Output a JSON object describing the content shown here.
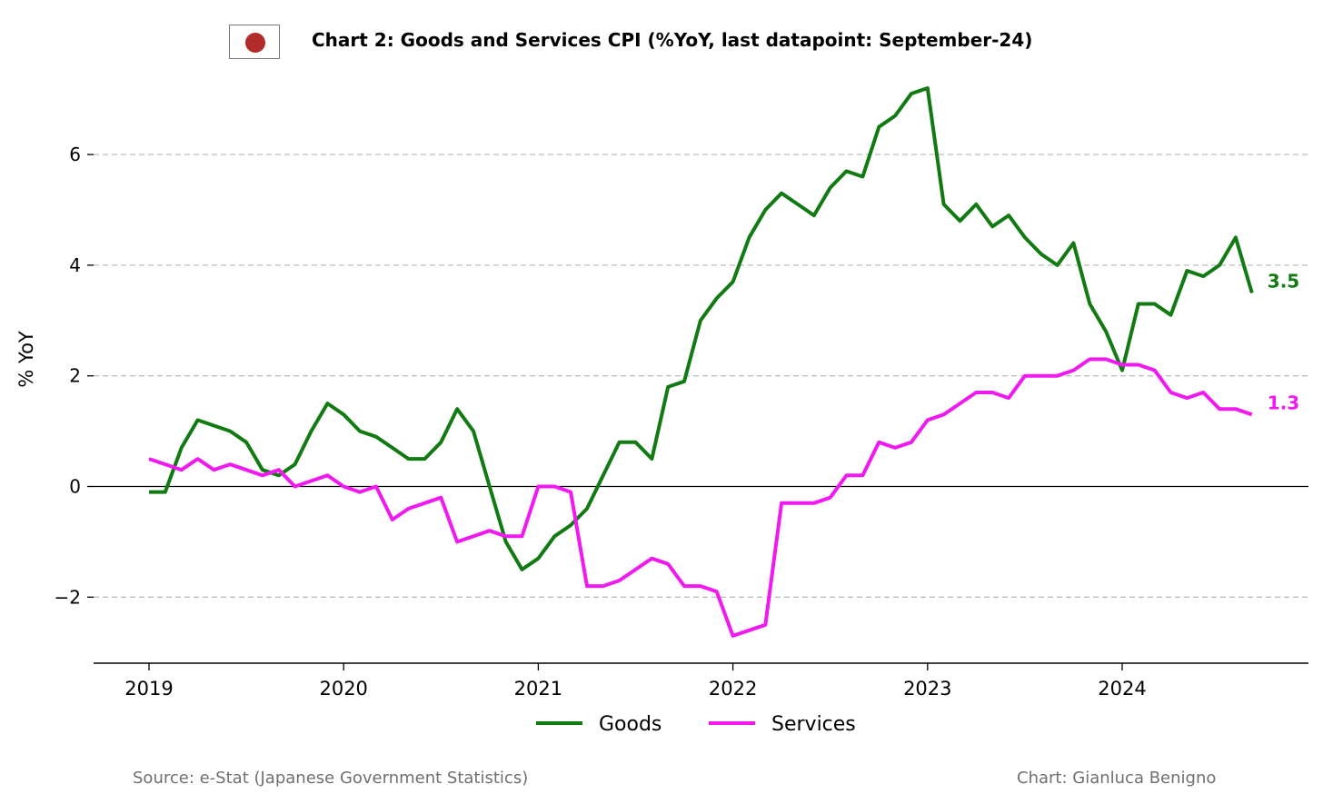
{
  "title": "Chart 2: Goods and Services CPI (%YoY, last datapoint: September-24)",
  "source": "Source: e-Stat (Japanese Government Statistics)",
  "credit": "Chart: Gianluca Benigno",
  "flag_icon": "japan-flag-icon",
  "chart_data": {
    "type": "line",
    "title": "Chart 2: Goods and Services CPI (%YoY, last datapoint: September-24)",
    "xlabel": "",
    "ylabel": "% YoY",
    "ylim": [
      -3.2,
      7.4
    ],
    "yticks": [
      -2,
      0,
      2,
      4,
      6
    ],
    "ytick_labels": [
      "−2",
      "0",
      "2",
      "4",
      "6"
    ],
    "xticks": [
      "2019",
      "2020",
      "2021",
      "2022",
      "2023",
      "2024"
    ],
    "x_start": "2019-01",
    "grid": "horizontal dashed",
    "legend": "bottom-center",
    "series": [
      {
        "name": "Goods",
        "color": "#127a12",
        "end_label": "3.5",
        "values": [
          -0.1,
          -0.1,
          0.7,
          1.2,
          1.1,
          1.0,
          0.8,
          0.3,
          0.2,
          0.4,
          1.0,
          1.5,
          1.3,
          1.0,
          0.9,
          0.7,
          0.5,
          0.5,
          0.8,
          1.4,
          1.0,
          0.0,
          -1.0,
          -1.5,
          -1.3,
          -0.9,
          -0.7,
          -0.4,
          0.2,
          0.8,
          0.8,
          0.5,
          1.8,
          1.9,
          3.0,
          3.4,
          3.7,
          4.5,
          5.0,
          5.3,
          5.1,
          4.9,
          5.4,
          5.7,
          5.6,
          6.5,
          6.7,
          7.1,
          7.2,
          5.1,
          4.8,
          5.1,
          4.7,
          4.9,
          4.5,
          4.2,
          4.0,
          4.4,
          3.3,
          2.8,
          2.1,
          3.3,
          3.3,
          3.1,
          3.9,
          3.8,
          4.0,
          4.5,
          3.5
        ]
      },
      {
        "name": "Services",
        "color": "#f01af0",
        "end_label": "1.3",
        "values": [
          0.5,
          0.4,
          0.3,
          0.5,
          0.3,
          0.4,
          0.3,
          0.2,
          0.3,
          0.0,
          0.1,
          0.2,
          0.0,
          -0.1,
          0.0,
          -0.6,
          -0.4,
          -0.3,
          -0.2,
          -1.0,
          -0.9,
          -0.8,
          -0.9,
          -0.9,
          0.0,
          0.0,
          -0.1,
          -1.8,
          -1.8,
          -1.7,
          -1.5,
          -1.3,
          -1.4,
          -1.8,
          -1.8,
          -1.9,
          -2.7,
          -2.6,
          -2.5,
          -0.3,
          -0.3,
          -0.3,
          -0.2,
          0.2,
          0.2,
          0.8,
          0.7,
          0.8,
          1.2,
          1.3,
          1.5,
          1.7,
          1.7,
          1.6,
          2.0,
          2.0,
          2.0,
          2.1,
          2.3,
          2.3,
          2.2,
          2.2,
          2.1,
          1.7,
          1.6,
          1.7,
          1.4,
          1.4,
          1.3
        ]
      }
    ]
  }
}
